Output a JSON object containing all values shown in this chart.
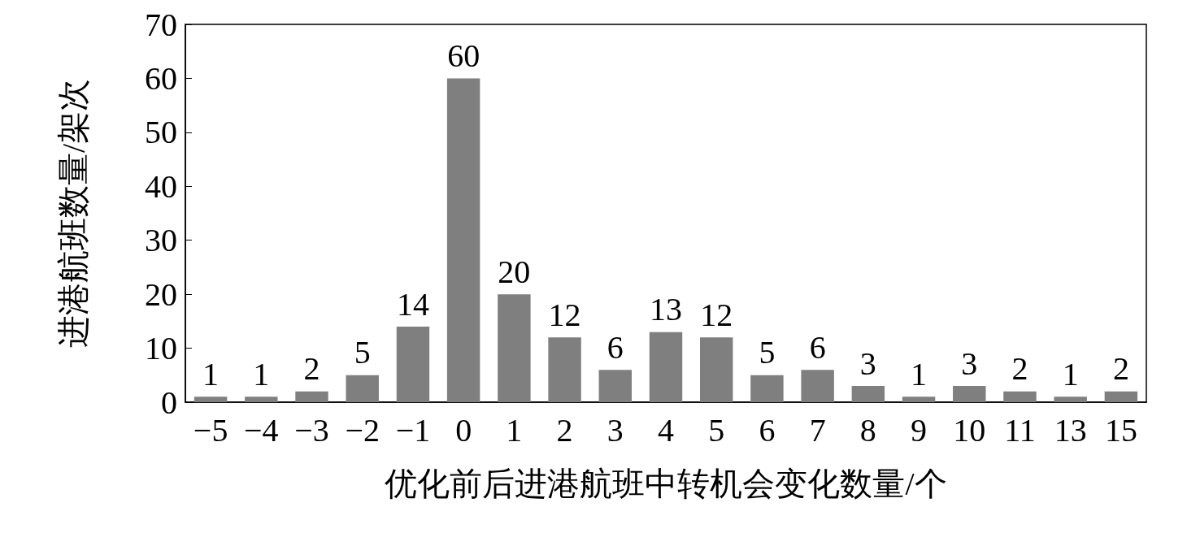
{
  "chart_data": {
    "type": "bar",
    "xlabel": "优化前后进港航班中转机会变化数量/个",
    "ylabel": "进港航班数量/架次",
    "categories": [
      "−5",
      "−4",
      "−3",
      "−2",
      "−1",
      "0",
      "1",
      "2",
      "3",
      "4",
      "5",
      "6",
      "7",
      "8",
      "9",
      "10",
      "11",
      "13",
      "15"
    ],
    "values": [
      1,
      1,
      2,
      5,
      14,
      60,
      20,
      12,
      6,
      13,
      12,
      5,
      6,
      3,
      1,
      3,
      2,
      1,
      2
    ],
    "color": "#7f7f7f",
    "ylim": [
      0,
      70
    ],
    "yticks": [
      0,
      10,
      20,
      30,
      40,
      50,
      60,
      70
    ],
    "grid": false,
    "data_labels": true
  }
}
